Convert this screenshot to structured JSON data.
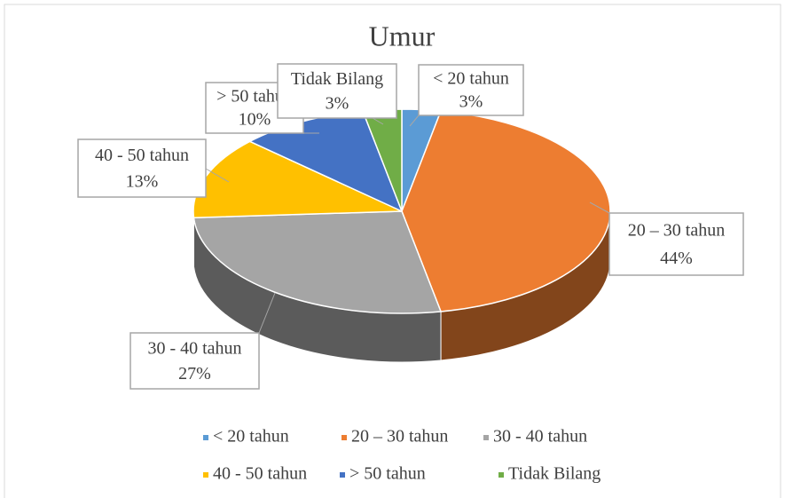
{
  "chart_data": {
    "type": "pie3d",
    "title": "Umur",
    "categories": [
      "< 20 tahun",
      "20 – 30 tahun",
      "30 - 40 tahun",
      "40 - 50 tahun",
      "> 50 tahun",
      "Tidak Bilang"
    ],
    "values": [
      3,
      44,
      27,
      13,
      10,
      3
    ],
    "value_labels": [
      "3%",
      "44%",
      "27%",
      "13%",
      "10%",
      "3%"
    ],
    "colors": [
      "#5b9bd5",
      "#ed7d31",
      "#a5a5a5",
      "#ffc000",
      "#4472c4",
      "#70ad47"
    ],
    "legend": "bottom"
  }
}
